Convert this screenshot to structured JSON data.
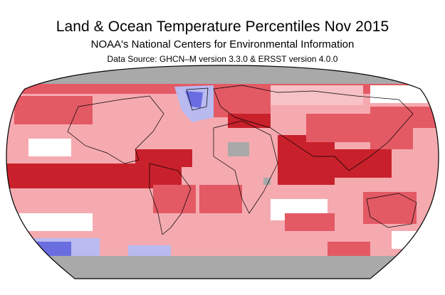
{
  "header": {
    "title": "Land & Ocean Temperature Percentiles Nov 2015",
    "subtitle": "NOAA's National Centers for Environmental Information",
    "source": "Data Source: GHCN–M version 3.3.0 & ERSST version 4.0.0"
  },
  "map": {
    "projection": "robinson",
    "colors": {
      "record_warmest": "#c8212b",
      "much_above_normal": "#e35a64",
      "above_normal": "#f5aab0",
      "near_normal": "#ffffff",
      "below_normal": "#b8baf0",
      "much_below_normal": "#6a6de0",
      "no_data": "#a9a9a9",
      "land_outline": "#000000"
    }
  }
}
